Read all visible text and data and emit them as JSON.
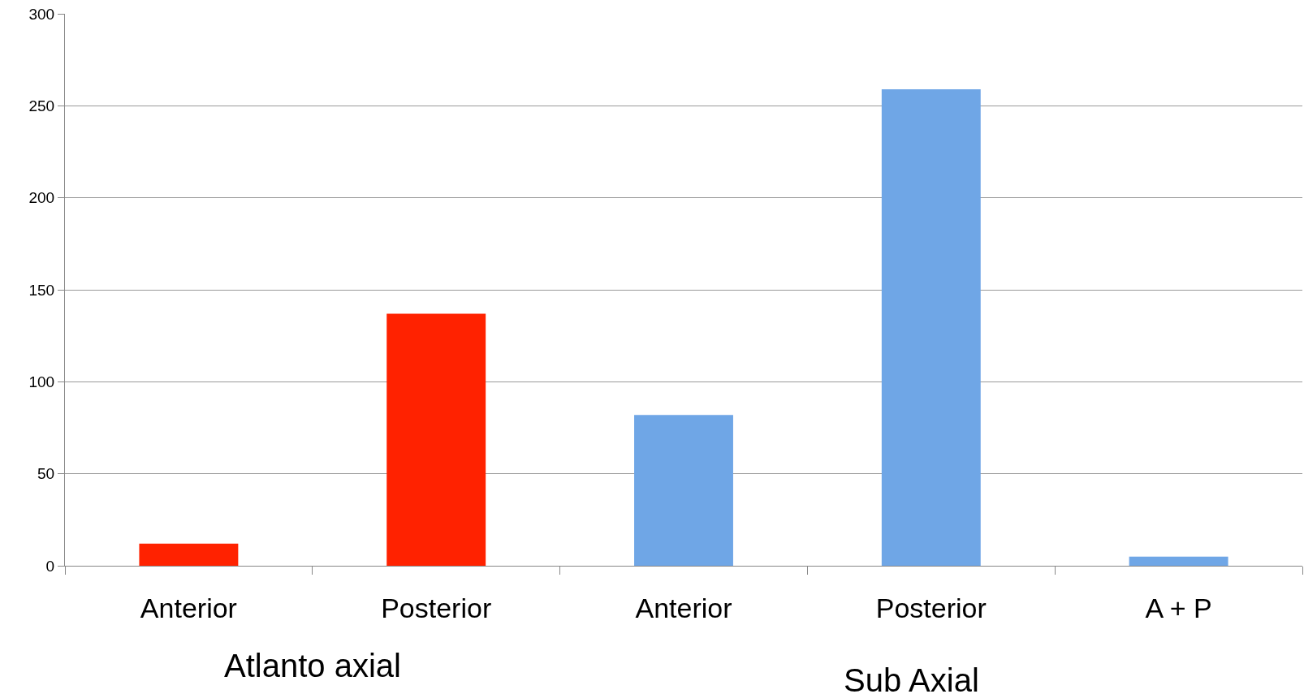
{
  "chart_data": {
    "type": "bar",
    "categories": [
      "Anterior",
      "Posterior",
      "Anterior",
      "Posterior",
      "A + P"
    ],
    "values": [
      12,
      137,
      82,
      259,
      5
    ],
    "colors": [
      "#ff2200",
      "#ff2200",
      "#6fa6e6",
      "#6fa6e6",
      "#6fa6e6"
    ],
    "ylim": [
      0,
      300
    ],
    "yticks": [
      0,
      50,
      100,
      150,
      200,
      250,
      300
    ],
    "grid": "y",
    "annotations": [
      "Atlanto axial",
      "Sub Axial"
    ]
  }
}
